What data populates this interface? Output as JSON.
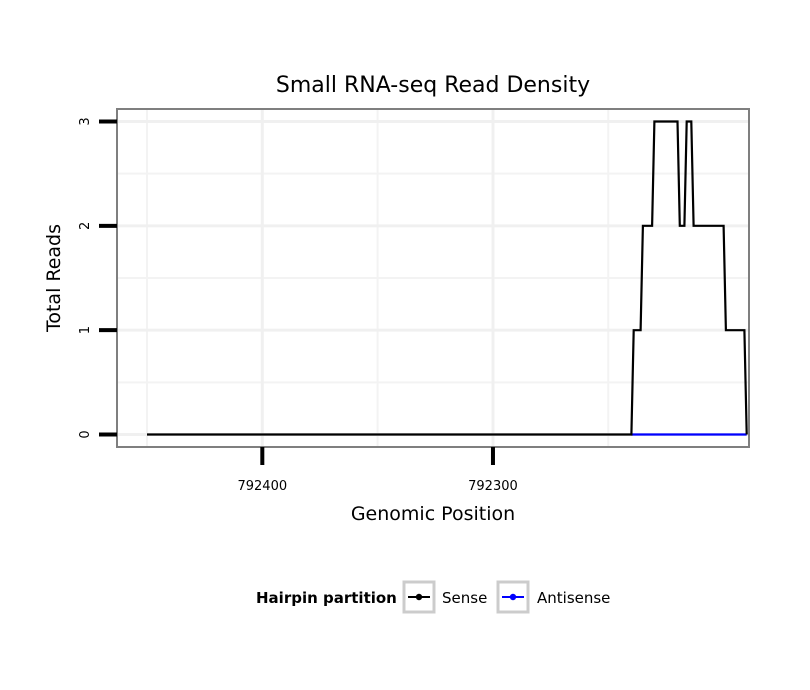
{
  "chart_data": {
    "type": "line",
    "title": "Small RNA-seq Read Density",
    "xlabel": "Genomic Position",
    "ylabel": "Total Reads",
    "xlim": [
      792463,
      792189
    ],
    "x_reversed": true,
    "ylim": [
      -0.12,
      3.12
    ],
    "x_ticks": [
      792400,
      792300
    ],
    "x_tick_labels": [
      "792400",
      "792300"
    ],
    "y_ticks": [
      0,
      1,
      2,
      3
    ],
    "y_tick_labels": [
      "0",
      "1",
      "2",
      "3"
    ],
    "grid": true,
    "legend": {
      "title": "Hairpin partition",
      "position": "bottom"
    },
    "series": [
      {
        "name": "Sense",
        "color": "#000000",
        "points": [
          [
            792450,
            0
          ],
          [
            792240,
            0
          ],
          [
            792239,
            1
          ],
          [
            792236,
            1
          ],
          [
            792235,
            2
          ],
          [
            792231,
            2
          ],
          [
            792230,
            3
          ],
          [
            792220,
            3
          ],
          [
            792219,
            2
          ],
          [
            792217,
            2
          ],
          [
            792216,
            3
          ],
          [
            792214,
            3
          ],
          [
            792213,
            2
          ],
          [
            792200,
            2
          ],
          [
            792199,
            1
          ],
          [
            792191,
            1
          ],
          [
            792190,
            0
          ]
        ]
      },
      {
        "name": "Antisense",
        "color": "#0000ff",
        "points": [
          [
            792240,
            0
          ],
          [
            792190,
            0
          ]
        ]
      }
    ]
  }
}
